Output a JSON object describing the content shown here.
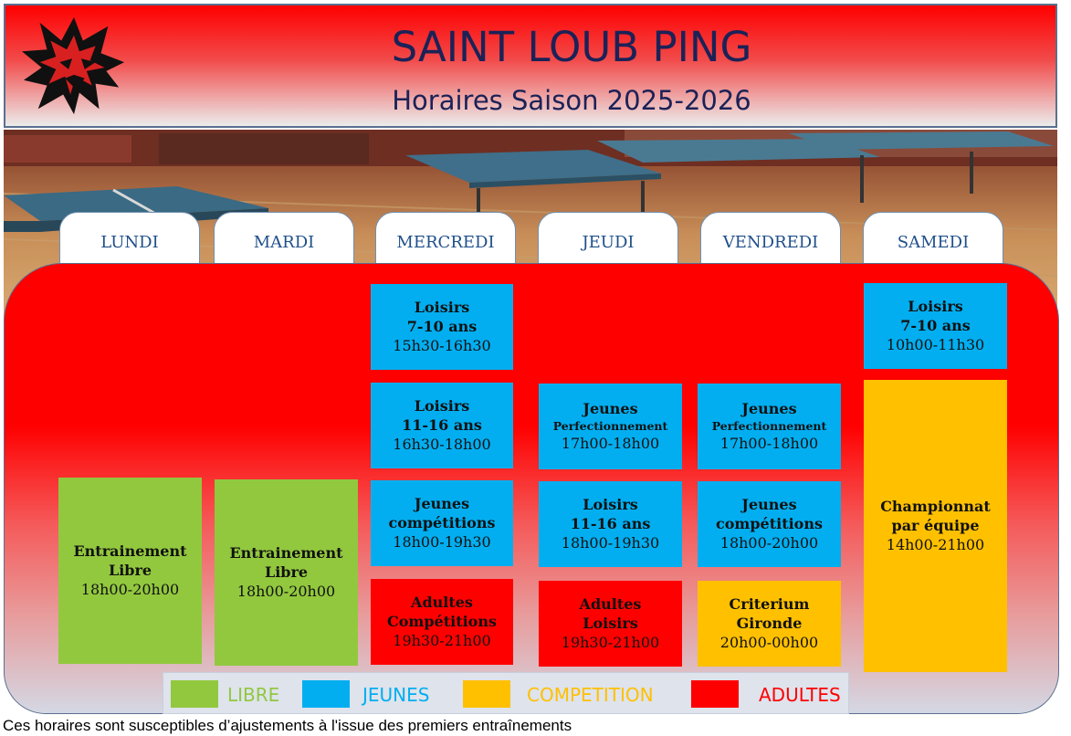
{
  "header": {
    "title": "SAINT LOUB PING",
    "subtitle": "Horaires Saison 2025-2026",
    "logo_icon": "wolf-head-icon"
  },
  "days": [
    "LUNDI",
    "MARDI",
    "MERCREDI",
    "JEUDI",
    "VENDREDI",
    "SAMEDI"
  ],
  "schedule": {
    "lundi": [
      {
        "line1": "Entrainement",
        "line2": "Libre",
        "time": "18h00-20h00",
        "category": "LIBRE"
      }
    ],
    "mardi": [
      {
        "line1": "Entrainement",
        "line2": "Libre",
        "time": "18h00-20h00",
        "category": "LIBRE"
      }
    ],
    "mercredi": [
      {
        "line1": "Loisirs",
        "line2": "7-10 ans",
        "time": "15h30-16h30",
        "category": "JEUNES"
      },
      {
        "line1": "Loisirs",
        "line2": "11-16 ans",
        "time": "16h30-18h00",
        "category": "JEUNES"
      },
      {
        "line1": "Jeunes",
        "line2": "compétitions",
        "time": "18h00-19h30",
        "category": "JEUNES"
      },
      {
        "line1": "Adultes",
        "line2": "Compétitions",
        "time": "19h30-21h00",
        "category": "ADULTES"
      }
    ],
    "jeudi": [
      {
        "line1": "Jeunes",
        "line2": "Perfectionnement",
        "time": "17h00-18h00",
        "category": "JEUNES"
      },
      {
        "line1": "Loisirs",
        "line2": "11-16 ans",
        "time": "18h00-19h30",
        "category": "JEUNES"
      },
      {
        "line1": "Adultes",
        "line2": "Loisirs",
        "time": "19h30-21h00",
        "category": "ADULTES"
      }
    ],
    "vendredi": [
      {
        "line1": "Jeunes",
        "line2": "Perfectionnement",
        "time": "17h00-18h00",
        "category": "JEUNES"
      },
      {
        "line1": "Jeunes",
        "line2": "compétitions",
        "time": "18h00-20h00",
        "category": "JEUNES"
      },
      {
        "line1": "Criterium",
        "line2": "Gironde",
        "time": "20h00-00h00",
        "category": "COMPETITION"
      }
    ],
    "samedi": [
      {
        "line1": "Loisirs",
        "line2": "7-10 ans",
        "time": "10h00-11h30",
        "category": "JEUNES"
      },
      {
        "line1": "Championnat",
        "line2": "par équipe",
        "time": "14h00-21h00",
        "category": "COMPETITION"
      }
    ]
  },
  "legend": [
    {
      "label": "LIBRE",
      "color": "#92c83e"
    },
    {
      "label": "JEUNES",
      "color": "#02aef0"
    },
    {
      "label": "COMPETITION",
      "color": "#ffc000"
    },
    {
      "label": "ADULTES",
      "color": "#ff0000"
    }
  ],
  "footer_note": "Ces horaires sont susceptibles d’ajustements à l'issue des premiers entraînements"
}
